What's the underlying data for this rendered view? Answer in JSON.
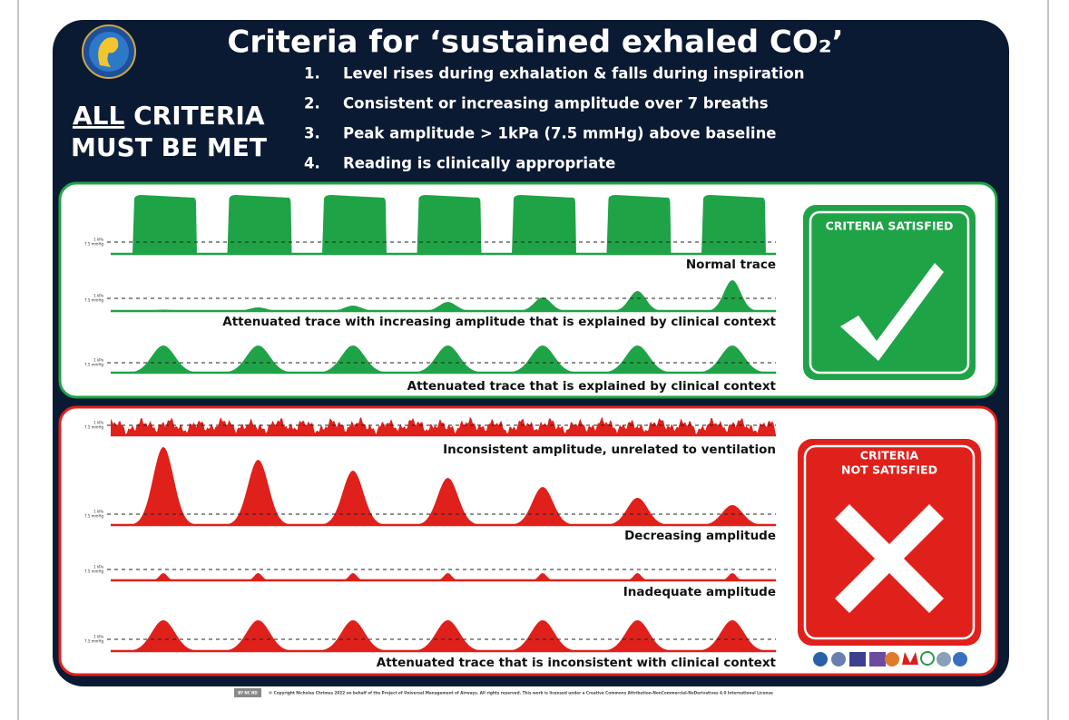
{
  "header": {
    "title": "Criteria for ‘sustained exhaled CO₂’",
    "all": "ALL",
    "criteria_word": "CRITERIA",
    "must_be_met": "MUST BE MET",
    "criteria": [
      {
        "number": "1.",
        "text": "Level rises during exhalation & falls during inspiration"
      },
      {
        "number": "2.",
        "text": "Consistent or increasing amplitude over 7 breaths"
      },
      {
        "number": "3.",
        "text": "Peak amplitude > 1kPa (7.5 mmHg) above baseline"
      },
      {
        "number": "4.",
        "text": "Reading is clinically appropriate"
      }
    ]
  },
  "satisfied": {
    "badge": "CRITERIA SATISFIED",
    "traces": [
      {
        "label": "Normal trace",
        "scale": [
          "1 kPa",
          "7.5 mmHg"
        ]
      },
      {
        "label": "Attenuated trace with increasing amplitude that is explained by clinical context",
        "scale": [
          "1 kPa",
          "7.5 mmHg"
        ]
      },
      {
        "label": "Attenuated trace that is explained by clinical context",
        "scale": [
          "1 kPa",
          "7.5 mmHg"
        ]
      }
    ]
  },
  "not_satisfied": {
    "badge": [
      "CRITERIA",
      "NOT SATISFIED"
    ],
    "traces": [
      {
        "label": "Inconsistent amplitude, unrelated to ventilation",
        "scale": [
          "1 kPa",
          "7.5 mmHg"
        ]
      },
      {
        "label": "Decreasing amplitude",
        "scale": [
          "1 kPa",
          "7.5 mmHg"
        ]
      },
      {
        "label": "Inadequate amplitude",
        "scale": [
          "1 kPa",
          "7.5 mmHg"
        ]
      },
      {
        "label": "Attenuated trace that is inconsistent with clinical context",
        "scale": [
          "1 kPa",
          "7.5 mmHg"
        ]
      }
    ]
  },
  "footer": {
    "cc": "BY NC ND",
    "copyright": "© Copyright Nicholas Chrimes 2022 on behalf of the Project of Universal Management of Airways. All rights reserved. This work is licensed under a Creative Commons Attribution-NonCommercial-NoDerivatives 4.0 International License"
  }
}
